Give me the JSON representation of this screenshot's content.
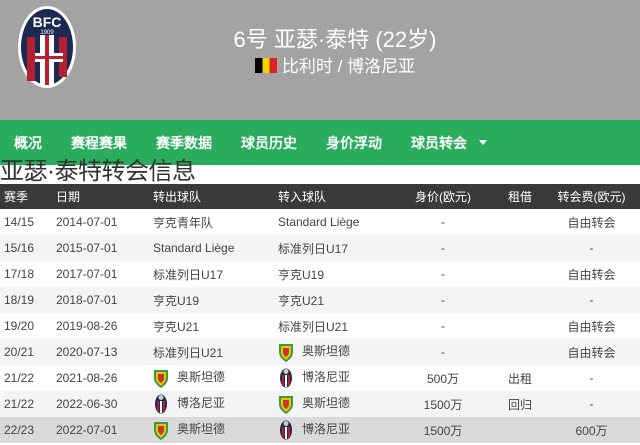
{
  "header": {
    "club_logo_text": "BFC",
    "club_logo_year": "1909",
    "title": "6号 亚瑟·泰特 (22岁)",
    "flag": "belgium-flag",
    "subtitle": "比利时 / 博洛尼亚"
  },
  "nav": {
    "items": [
      "概况",
      "赛程赛果",
      "赛季数据",
      "球员历史",
      "身价浮动",
      "球员转会"
    ]
  },
  "page_title": "亚瑟·泰特转会信息",
  "table": {
    "headers": [
      "赛季",
      "日期",
      "转出球队",
      "转入球队",
      "身价(欧元)",
      "租借",
      "转会费(欧元)"
    ],
    "rows": [
      {
        "season": "14/15",
        "date": "2014-07-01",
        "from": "亨克青年队",
        "from_badge": "",
        "to": "Standard Liège",
        "to_badge": "",
        "value": "-",
        "loan": "",
        "fee": "自由转会"
      },
      {
        "season": "15/16",
        "date": "2015-07-01",
        "from": "Standard Liège",
        "from_badge": "",
        "to": "标准列日U17",
        "to_badge": "",
        "value": "-",
        "loan": "",
        "fee": "-"
      },
      {
        "season": "17/18",
        "date": "2017-07-01",
        "from": "标准列日U17",
        "from_badge": "",
        "to": "亨克U19",
        "to_badge": "",
        "value": "-",
        "loan": "",
        "fee": "自由转会"
      },
      {
        "season": "18/19",
        "date": "2018-07-01",
        "from": "亨克U19",
        "from_badge": "",
        "to": "亨克U21",
        "to_badge": "",
        "value": "-",
        "loan": "",
        "fee": "-"
      },
      {
        "season": "19/20",
        "date": "2019-08-26",
        "from": "亨克U21",
        "from_badge": "",
        "to": "标准列日U21",
        "to_badge": "",
        "value": "-",
        "loan": "",
        "fee": "自由转会"
      },
      {
        "season": "20/21",
        "date": "2020-07-13",
        "from": "标准列日U21",
        "from_badge": "",
        "to": "奥斯坦德",
        "to_badge": "ostende",
        "value": "-",
        "loan": "",
        "fee": "自由转会"
      },
      {
        "season": "21/22",
        "date": "2021-08-26",
        "from": "奥斯坦德",
        "from_badge": "ostende",
        "to": "博洛尼亚",
        "to_badge": "bologna",
        "value": "500万",
        "loan": "出租",
        "fee": "-"
      },
      {
        "season": "21/22",
        "date": "2022-06-30",
        "from": "博洛尼亚",
        "from_badge": "bologna",
        "to": "奥斯坦德",
        "to_badge": "ostende",
        "value": "1500万",
        "loan": "回归",
        "fee": "-"
      },
      {
        "season": "22/23",
        "date": "2022-07-01",
        "from": "奥斯坦德",
        "from_badge": "ostende",
        "to": "博洛尼亚",
        "to_badge": "bologna",
        "value": "1500万",
        "loan": "",
        "fee": "600万"
      }
    ]
  },
  "colors": {
    "header_bg": "#a3a3a3",
    "nav_bg": "#2aac5d",
    "table_header_bg": "#3a3a3a",
    "highlight_row": "#d9d9d9"
  }
}
